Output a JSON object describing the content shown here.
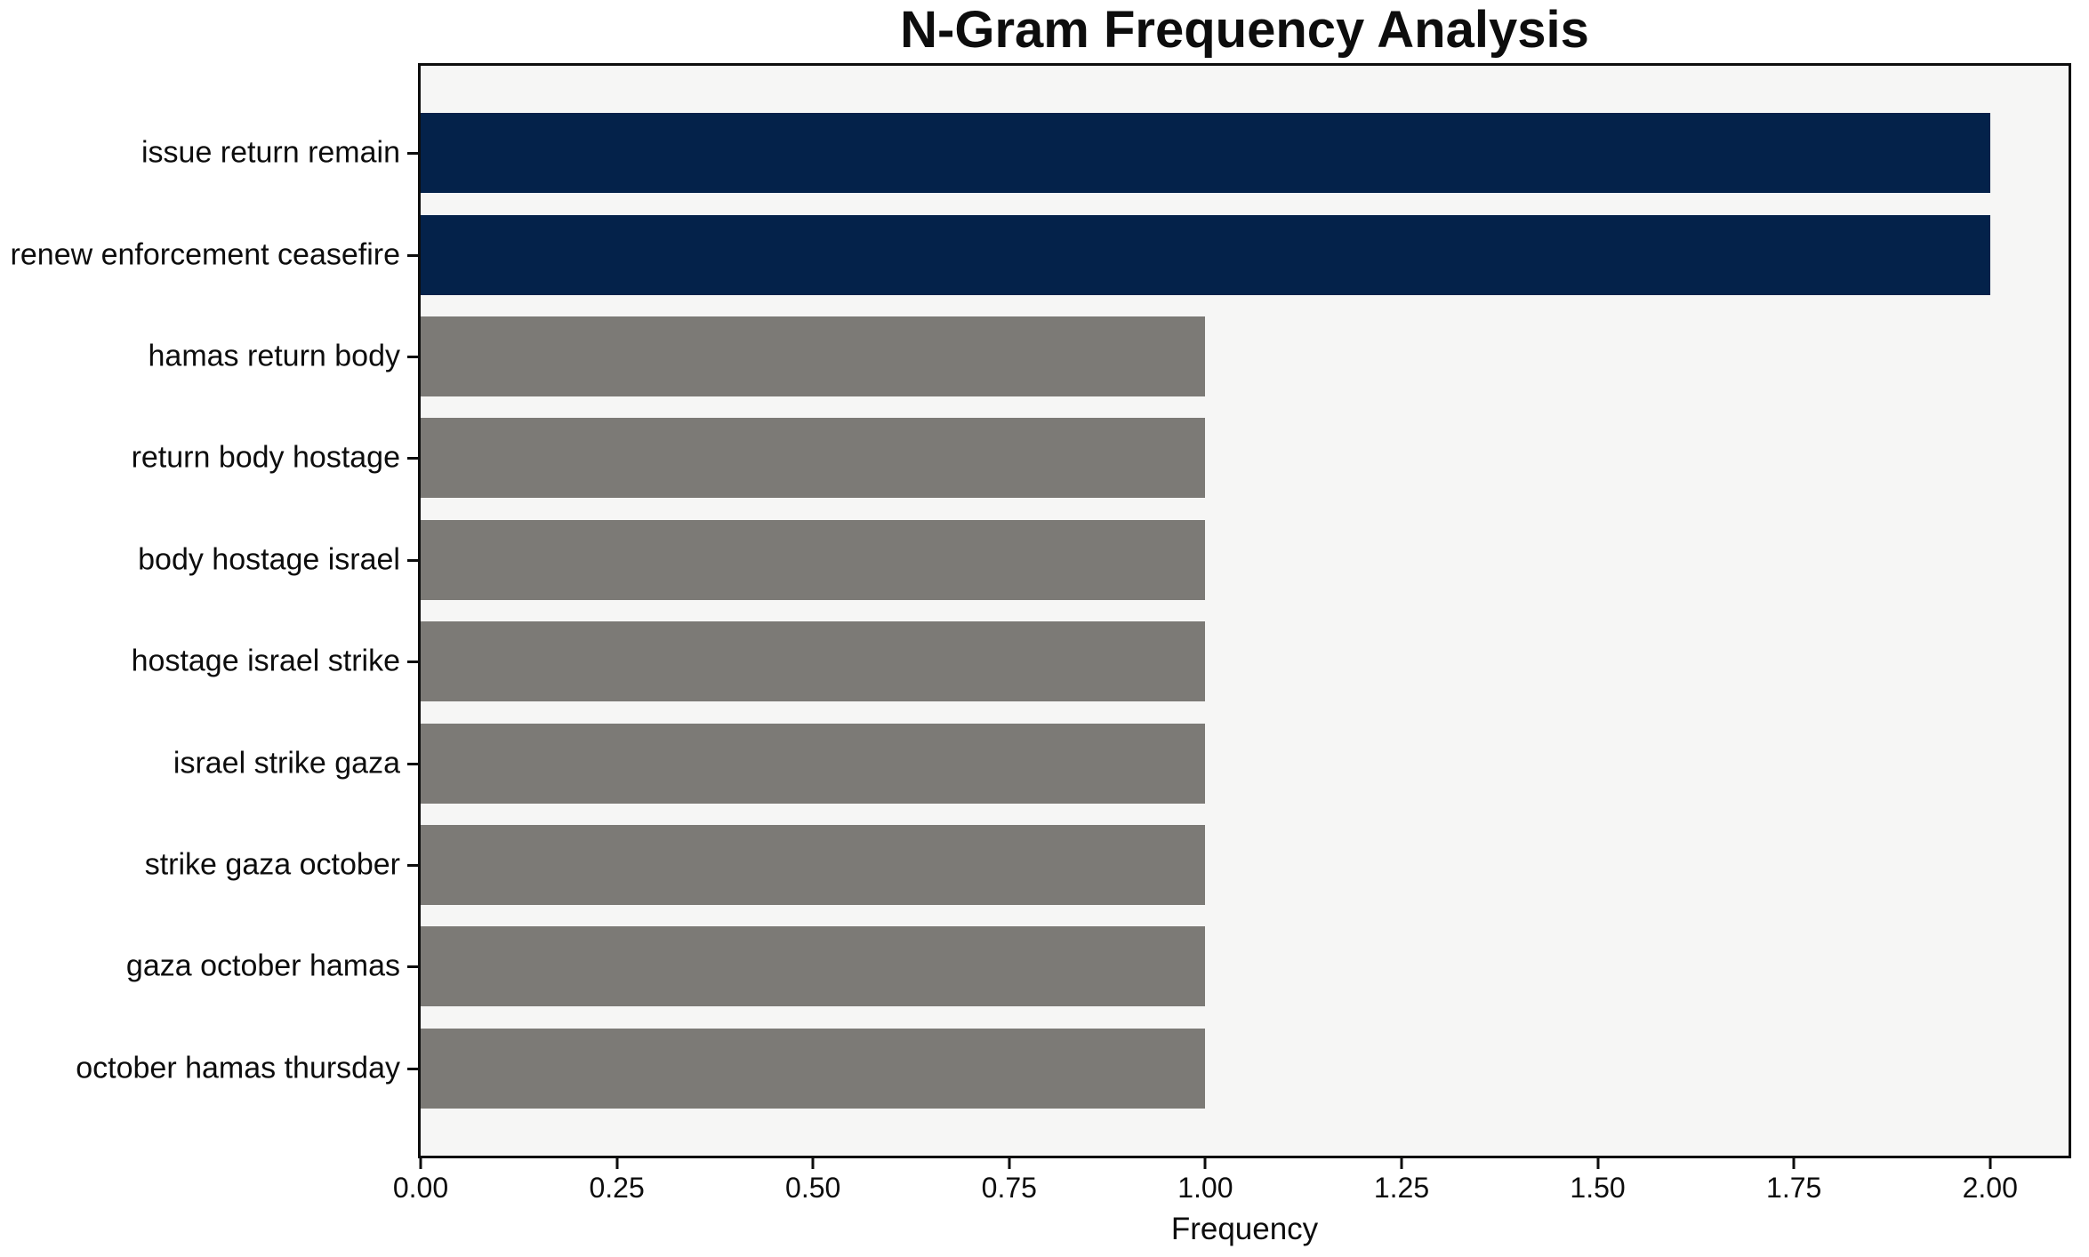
{
  "chart_data": {
    "type": "bar",
    "orientation": "horizontal",
    "title": "N-Gram Frequency Analysis",
    "xlabel": "Frequency",
    "ylabel": "",
    "categories": [
      "issue return remain",
      "renew enforcement ceasefire",
      "hamas return body",
      "return body hostage",
      "body hostage israel",
      "hostage israel strike",
      "israel strike gaza",
      "strike gaza october",
      "gaza october hamas",
      "october hamas thursday"
    ],
    "values": [
      2,
      2,
      1,
      1,
      1,
      1,
      1,
      1,
      1,
      1
    ],
    "bar_colors": [
      "#04224a",
      "#04224a",
      "#7c7a76",
      "#7c7a76",
      "#7c7a76",
      "#7c7a76",
      "#7c7a76",
      "#7c7a76",
      "#7c7a76",
      "#7c7a76"
    ],
    "x_ticks": [
      {
        "value": 0,
        "label": "0.00"
      },
      {
        "value": 0.25,
        "label": "0.25"
      },
      {
        "value": 0.5,
        "label": "0.50"
      },
      {
        "value": 0.75,
        "label": "0.75"
      },
      {
        "value": 1,
        "label": "1.00"
      },
      {
        "value": 1.25,
        "label": "1.25"
      },
      {
        "value": 1.5,
        "label": "1.50"
      },
      {
        "value": 1.75,
        "label": "1.75"
      },
      {
        "value": 2,
        "label": "2.00"
      }
    ],
    "xlim": [
      0,
      2.1
    ],
    "grid": false,
    "legend": false,
    "colors": {
      "highlight_bar": "#04224a",
      "default_bar": "#7c7a76",
      "plot_background": "#f6f6f5",
      "figure_background": "#ffffff",
      "spine": "#0d0d0d",
      "text": "#0d0d0d"
    }
  }
}
